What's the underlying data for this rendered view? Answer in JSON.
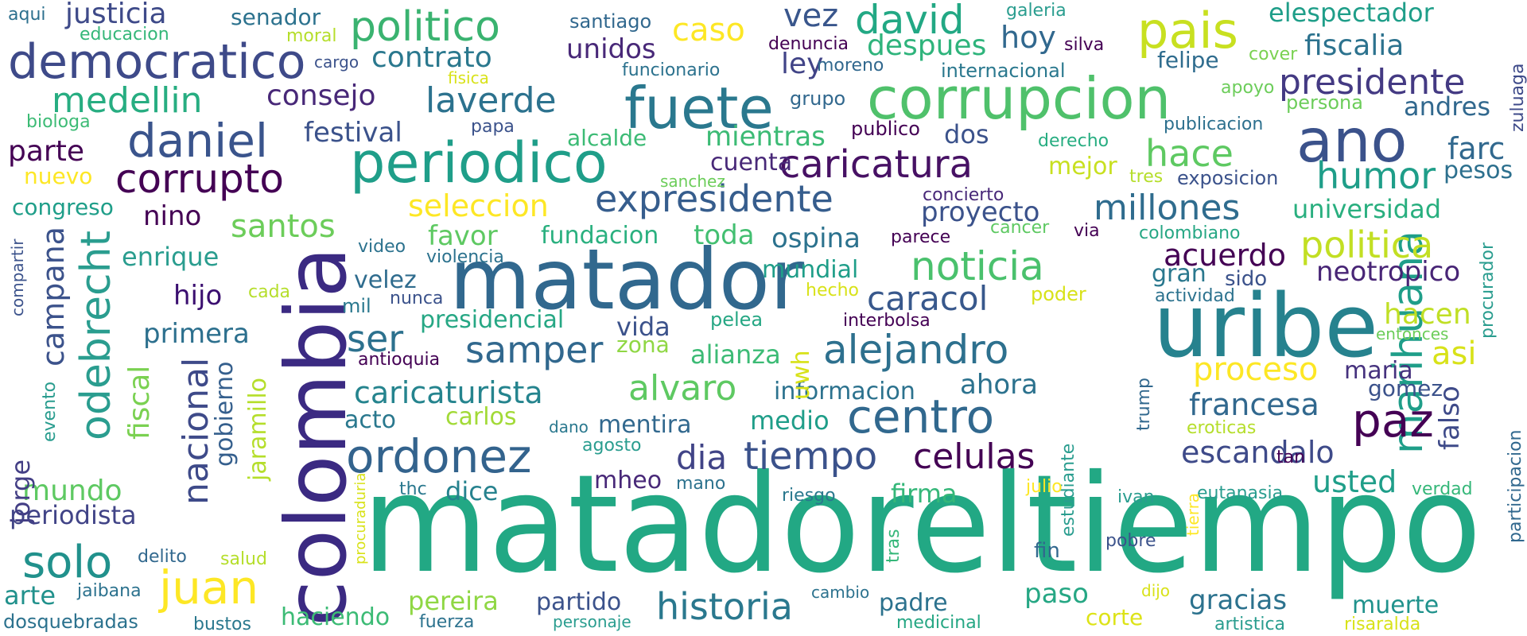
{
  "palette": [
    "#440154",
    "#482878",
    "#3e4989",
    "#31688e",
    "#26828e",
    "#1f9e89",
    "#35b779",
    "#6ece58",
    "#b5de2b",
    "#fde725"
  ],
  "words": [
    {
      "id": "matadoreltiempo",
      "text": "matadoreltiempo",
      "color": "#22a884"
    },
    {
      "id": "colombia",
      "text": "colombia",
      "color": "#3b2a82"
    },
    {
      "id": "matador",
      "text": "matador",
      "color": "#31688e"
    },
    {
      "id": "uribe",
      "text": "uribe",
      "color": "#26828e"
    },
    {
      "id": "corrupcion",
      "text": "corrupcion",
      "color": "#4fc16b"
    },
    {
      "id": "periodico",
      "text": "periodico",
      "color": "#1f9e89"
    },
    {
      "id": "fuete",
      "text": "fuete",
      "color": "#2a788e"
    },
    {
      "id": "democratico",
      "text": "democratico",
      "color": "#3e4a89"
    },
    {
      "id": "marihuana",
      "text": "marihuana",
      "color": "#1f9e89"
    },
    {
      "id": "pais",
      "text": "pais",
      "color": "#c8e020"
    },
    {
      "id": "ano",
      "text": "ano",
      "color": "#3b528b"
    },
    {
      "id": "paz",
      "text": "paz",
      "color": "#440154"
    },
    {
      "id": "centro",
      "text": "centro",
      "color": "#31688e"
    },
    {
      "id": "odebrecht",
      "text": "odebrecht",
      "color": "#2a9d8f"
    },
    {
      "id": "ordonez",
      "text": "ordonez",
      "color": "#33638d"
    },
    {
      "id": "daniel",
      "text": "daniel",
      "color": "#3a548c"
    },
    {
      "id": "juan",
      "text": "juan",
      "color": "#fde725"
    },
    {
      "id": "solo",
      "text": "solo",
      "color": "#21918c"
    },
    {
      "id": "corrupto",
      "text": "corrupto",
      "color": "#440154"
    },
    {
      "id": "politico",
      "text": "politico",
      "color": "#3ab370"
    },
    {
      "id": "caricatura",
      "text": "caricatura",
      "color": "#471164"
    },
    {
      "id": "expresidente",
      "text": "expresidente",
      "color": "#365d8d"
    },
    {
      "id": "alejandro",
      "text": "alejandro",
      "color": "#2d708e"
    },
    {
      "id": "noticia",
      "text": "noticia",
      "color": "#4ac16d"
    },
    {
      "id": "tiempo",
      "text": "tiempo",
      "color": "#3b528b"
    },
    {
      "id": "david",
      "text": "david",
      "color": "#22a884"
    },
    {
      "id": "historia",
      "text": "historia",
      "color": "#2a788e"
    },
    {
      "id": "politica",
      "text": "politica",
      "color": "#c2df23"
    },
    {
      "id": "nacional",
      "text": "nacional",
      "color": "#3e4a89"
    },
    {
      "id": "samper",
      "text": "samper",
      "color": "#31688e"
    },
    {
      "id": "humor",
      "text": "humor",
      "color": "#1f9e89"
    },
    {
      "id": "presidente",
      "text": "presidente",
      "color": "#443a83"
    },
    {
      "id": "laverde",
      "text": "laverde",
      "color": "#2c728e"
    },
    {
      "id": "medellin",
      "text": "medellin",
      "color": "#27ad81"
    },
    {
      "id": "millones",
      "text": "millones",
      "color": "#2f6c8e"
    },
    {
      "id": "hace",
      "text": "hace",
      "color": "#5ec962"
    },
    {
      "id": "alvaro",
      "text": "alvaro",
      "color": "#5ec962"
    },
    {
      "id": "celulas",
      "text": "celulas",
      "color": "#440154"
    },
    {
      "id": "caracol",
      "text": "caracol",
      "color": "#38588c"
    },
    {
      "id": "campana",
      "text": "campana",
      "color": "#3b528b"
    },
    {
      "id": "ser",
      "text": "ser",
      "color": "#2c718e"
    },
    {
      "id": "santos",
      "text": "santos",
      "color": "#6ccd5a"
    },
    {
      "id": "caricaturista",
      "text": "caricaturista",
      "color": "#25848e"
    },
    {
      "id": "proceso",
      "text": "proceso",
      "color": "#fde725"
    },
    {
      "id": "dia",
      "text": "dia",
      "color": "#414487"
    },
    {
      "id": "seleccion",
      "text": "seleccion",
      "color": "#fde725"
    },
    {
      "id": "escandalo",
      "text": "escandalo",
      "color": "#3e4a89"
    },
    {
      "id": "francesa",
      "text": "francesa",
      "color": "#31688e"
    },
    {
      "id": "fiscal",
      "text": "fiscal",
      "color": "#7ad151"
    },
    {
      "id": "gobierno",
      "text": "gobierno",
      "color": "#355f8d"
    },
    {
      "id": "jaramillo",
      "text": "jaramillo",
      "color": "#b5de2b"
    },
    {
      "id": "mundo",
      "text": "mundo",
      "color": "#5ec962"
    },
    {
      "id": "usted",
      "text": "usted",
      "color": "#1f9e89"
    },
    {
      "id": "asi",
      "text": "asi",
      "color": "#d8e219"
    },
    {
      "id": "hacen",
      "text": "hacen",
      "color": "#c0df25"
    },
    {
      "id": "acuerdo",
      "text": "acuerdo",
      "color": "#440154"
    },
    {
      "id": "neotropico",
      "text": "neotropico",
      "color": "#482576"
    },
    {
      "id": "farc",
      "text": "farc",
      "color": "#31688e"
    },
    {
      "id": "falso",
      "text": "falso",
      "color": "#3e4a89"
    },
    {
      "id": "consejo",
      "text": "consejo",
      "color": "#482878"
    },
    {
      "id": "contrato",
      "text": "contrato",
      "color": "#2a788e"
    },
    {
      "id": "justicia",
      "text": "justicia",
      "color": "#3e4a89"
    },
    {
      "id": "parte",
      "text": "parte",
      "color": "#440154"
    },
    {
      "id": "caso",
      "text": "caso",
      "color": "#fde725"
    },
    {
      "id": "vez",
      "text": "vez",
      "color": "#39568c"
    },
    {
      "id": "despues",
      "text": "despues",
      "color": "#2fb47c"
    },
    {
      "id": "hoy",
      "text": "hoy",
      "color": "#31688e"
    },
    {
      "id": "ley",
      "text": "ley",
      "color": "#414487"
    },
    {
      "id": "unidos",
      "text": "unidos",
      "color": "#482878"
    },
    {
      "id": "fiscalia",
      "text": "fiscalia",
      "color": "#2c728e"
    },
    {
      "id": "elespectador",
      "text": "elespectador",
      "color": "#1f9e89"
    },
    {
      "id": "andres",
      "text": "andres",
      "color": "#31688e"
    },
    {
      "id": "festival",
      "text": "festival",
      "color": "#3b528b"
    },
    {
      "id": "dos",
      "text": "dos",
      "color": "#3b528b"
    },
    {
      "id": "mientras",
      "text": "mientras",
      "color": "#3cbb75"
    },
    {
      "id": "cuenta",
      "text": "cuenta",
      "color": "#482878"
    },
    {
      "id": "proyecto",
      "text": "proyecto",
      "color": "#3b528b"
    },
    {
      "id": "universidad",
      "text": "universidad",
      "color": "#29af7f"
    },
    {
      "id": "pesos",
      "text": "pesos",
      "color": "#2d708e"
    },
    {
      "id": "nino",
      "text": "nino",
      "color": "#440154"
    },
    {
      "id": "enrique",
      "text": "enrique",
      "color": "#2a9d8f"
    },
    {
      "id": "favor",
      "text": "favor",
      "color": "#5ec962"
    },
    {
      "id": "fundacion",
      "text": "fundacion",
      "color": "#2ab07f"
    },
    {
      "id": "toda",
      "text": "toda",
      "color": "#43bf71"
    },
    {
      "id": "ospina",
      "text": "ospina",
      "color": "#2c728e"
    },
    {
      "id": "hijo",
      "text": "hijo",
      "color": "#3b0f70"
    },
    {
      "id": "primera",
      "text": "primera",
      "color": "#2d708e"
    },
    {
      "id": "velez",
      "text": "velez",
      "color": "#2f6c8e"
    },
    {
      "id": "vida",
      "text": "vida",
      "color": "#3b528b"
    },
    {
      "id": "presidencial",
      "text": "presidencial",
      "color": "#26a784"
    },
    {
      "id": "alianza",
      "text": "alianza",
      "color": "#3cbb75"
    },
    {
      "id": "mundial",
      "text": "mundial",
      "color": "#1f9e89"
    },
    {
      "id": "informacion",
      "text": "informacion",
      "color": "#2c728e"
    },
    {
      "id": "ahora",
      "text": "ahora",
      "color": "#2c728e"
    },
    {
      "id": "medio",
      "text": "medio",
      "color": "#1f9e89"
    },
    {
      "id": "mentira",
      "text": "mentira",
      "color": "#31688e"
    },
    {
      "id": "carlos",
      "text": "carlos",
      "color": "#a2da37"
    },
    {
      "id": "acto",
      "text": "acto",
      "color": "#2a788e"
    },
    {
      "id": "maria",
      "text": "maria",
      "color": "#46327e"
    },
    {
      "id": "gomez",
      "text": "gomez",
      "color": "#3b528b"
    },
    {
      "id": "mheo",
      "text": "mheo",
      "color": "#482878"
    },
    {
      "id": "dice",
      "text": "dice",
      "color": "#26828e"
    },
    {
      "id": "periodista",
      "text": "periodista",
      "color": "#414487"
    },
    {
      "id": "arte",
      "text": "arte",
      "color": "#21918c"
    },
    {
      "id": "jorge",
      "text": "jorge",
      "color": "#433e85"
    },
    {
      "id": "firma",
      "text": "firma",
      "color": "#35b779"
    },
    {
      "id": "pereira",
      "text": "pereira",
      "color": "#8fd744"
    },
    {
      "id": "partido",
      "text": "partido",
      "color": "#3b528b"
    },
    {
      "id": "padre",
      "text": "padre",
      "color": "#2c728e"
    },
    {
      "id": "paso",
      "text": "paso",
      "color": "#26a784"
    },
    {
      "id": "gracias",
      "text": "gracias",
      "color": "#2c728e"
    },
    {
      "id": "muerte",
      "text": "muerte",
      "color": "#20928c"
    },
    {
      "id": "haciendo",
      "text": "haciendo",
      "color": "#3cbb75"
    },
    {
      "id": "corte",
      "text": "corte",
      "color": "#dde318"
    },
    {
      "id": "zona",
      "text": "zona",
      "color": "#8fd744"
    },
    {
      "id": "uwh",
      "text": "uwh",
      "color": "#d8e219"
    },
    {
      "id": "gran",
      "text": "gran",
      "color": "#2a788e"
    },
    {
      "id": "sido",
      "text": "sido",
      "color": "#3b528b"
    },
    {
      "id": "mejor",
      "text": "mejor",
      "color": "#c8e020"
    },
    {
      "id": "estudiante",
      "text": "estudiante",
      "color": "#2a9d8f"
    },
    {
      "id": "procurador",
      "text": "procurador",
      "color": "#2a9d8f"
    },
    {
      "id": "participacion",
      "text": "participacion",
      "color": "#31688e"
    },
    {
      "id": "zuluaga",
      "text": "zuluaga",
      "color": "#3e4a89"
    },
    {
      "id": "congreso",
      "text": "congreso",
      "color": "#1f9e89"
    },
    {
      "id": "nuevo",
      "text": "nuevo",
      "color": "#fde725"
    },
    {
      "id": "senador",
      "text": "senador",
      "color": "#2c728e"
    },
    {
      "id": "santiago",
      "text": "santiago",
      "color": "#31688e"
    },
    {
      "id": "galeria",
      "text": "galeria",
      "color": "#2a9d8f"
    },
    {
      "id": "aqui",
      "text": "aqui",
      "color": "#2d708e"
    },
    {
      "id": "educacion",
      "text": "educacion",
      "color": "#35b779"
    },
    {
      "id": "moral",
      "text": "moral",
      "color": "#b5de2b"
    },
    {
      "id": "cargo",
      "text": "cargo",
      "color": "#3b528b"
    },
    {
      "id": "fisica",
      "text": "fisica",
      "color": "#d8e219"
    },
    {
      "id": "denuncia",
      "text": "denuncia",
      "color": "#440154"
    },
    {
      "id": "silva",
      "text": "silva",
      "color": "#440154"
    },
    {
      "id": "cover",
      "text": "cover",
      "color": "#7ad151"
    },
    {
      "id": "felipe",
      "text": "felipe",
      "color": "#2f6c8e"
    },
    {
      "id": "funcionario",
      "text": "funcionario",
      "color": "#2c728e"
    },
    {
      "id": "moreno",
      "text": "moreno",
      "color": "#31688e"
    },
    {
      "id": "internacional",
      "text": "internacional",
      "color": "#2a788e"
    },
    {
      "id": "apoyo",
      "text": "apoyo",
      "color": "#6ccd5a"
    },
    {
      "id": "persona",
      "text": "persona",
      "color": "#6ccd5a"
    },
    {
      "id": "biologa",
      "text": "biologa",
      "color": "#3cbb75"
    },
    {
      "id": "grupo",
      "text": "grupo",
      "color": "#31688e"
    },
    {
      "id": "papa",
      "text": "papa",
      "color": "#3b528b"
    },
    {
      "id": "publico",
      "text": "publico",
      "color": "#440154"
    },
    {
      "id": "derecho",
      "text": "derecho",
      "color": "#27ad81"
    },
    {
      "id": "publicacion",
      "text": "publicacion",
      "color": "#2d708e"
    },
    {
      "id": "alcalde",
      "text": "alcalde",
      "color": "#3cbb75"
    },
    {
      "id": "sanchez",
      "text": "sanchez",
      "color": "#6ccd5a"
    },
    {
      "id": "concierto",
      "text": "concierto",
      "color": "#482878"
    },
    {
      "id": "tres",
      "text": "tres",
      "color": "#b5de2b"
    },
    {
      "id": "exposicion",
      "text": "exposicion",
      "color": "#3b528b"
    },
    {
      "id": "cancer",
      "text": "cancer",
      "color": "#5ec962"
    },
    {
      "id": "via",
      "text": "via",
      "color": "#440154"
    },
    {
      "id": "colombiano",
      "text": "colombiano",
      "color": "#26a784"
    },
    {
      "id": "parece",
      "text": "parece",
      "color": "#440154"
    },
    {
      "id": "video",
      "text": "video",
      "color": "#2c728e"
    },
    {
      "id": "violencia",
      "text": "violencia",
      "color": "#2c728e"
    },
    {
      "id": "compartir",
      "text": "compartir",
      "color": "#3b528b"
    },
    {
      "id": "hecho",
      "text": "hecho",
      "color": "#d8e219"
    },
    {
      "id": "cada",
      "text": "cada",
      "color": "#b5de2b"
    },
    {
      "id": "mil",
      "text": "mil",
      "color": "#2a788e"
    },
    {
      "id": "nunca",
      "text": "nunca",
      "color": "#3b528b"
    },
    {
      "id": "poder",
      "text": "poder",
      "color": "#d8e219"
    },
    {
      "id": "actividad",
      "text": "actividad",
      "color": "#2c728e"
    },
    {
      "id": "entonces",
      "text": "entonces",
      "color": "#6ccd5a"
    },
    {
      "id": "interbolsa",
      "text": "interbolsa",
      "color": "#440154"
    },
    {
      "id": "pelea",
      "text": "pelea",
      "color": "#26a784"
    },
    {
      "id": "antioquia",
      "text": "antioquia",
      "color": "#440154"
    },
    {
      "id": "evento",
      "text": "evento",
      "color": "#2a9d8f"
    },
    {
      "id": "trump",
      "text": "trump",
      "color": "#31688e"
    },
    {
      "id": "eroticas",
      "text": "eroticas",
      "color": "#b5de2b"
    },
    {
      "id": "dano",
      "text": "dano",
      "color": "#2a788e"
    },
    {
      "id": "agosto",
      "text": "agosto",
      "color": "#2a9d8f"
    },
    {
      "id": "tan",
      "text": "tan",
      "color": "#440154"
    },
    {
      "id": "thc",
      "text": "thc",
      "color": "#2a788e"
    },
    {
      "id": "mano",
      "text": "mano",
      "color": "#2c728e"
    },
    {
      "id": "riesgo",
      "text": "riesgo",
      "color": "#2a788e"
    },
    {
      "id": "julio",
      "text": "julio",
      "color": "#fde725"
    },
    {
      "id": "ivan",
      "text": "ivan",
      "color": "#2a9d8f"
    },
    {
      "id": "eutanasia",
      "text": "eutanasia",
      "color": "#2a9d8f"
    },
    {
      "id": "verdad",
      "text": "verdad",
      "color": "#35b779"
    },
    {
      "id": "procuraduria",
      "text": "procuraduria",
      "color": "#d8e219"
    },
    {
      "id": "tras",
      "text": "tras",
      "color": "#35b779"
    },
    {
      "id": "fin",
      "text": "fin",
      "color": "#31688e"
    },
    {
      "id": "pobre",
      "text": "pobre",
      "color": "#3b528b"
    },
    {
      "id": "tierra",
      "text": "tierra",
      "color": "#fde725"
    },
    {
      "id": "delito",
      "text": "delito",
      "color": "#31688e"
    },
    {
      "id": "salud",
      "text": "salud",
      "color": "#b5de2b"
    },
    {
      "id": "jaibana",
      "text": "jaibana",
      "color": "#2c728e"
    },
    {
      "id": "cambio",
      "text": "cambio",
      "color": "#2c728e"
    },
    {
      "id": "dijo",
      "text": "dijo",
      "color": "#d8e219"
    },
    {
      "id": "dosquebradas",
      "text": "dosquebradas",
      "color": "#2c728e"
    },
    {
      "id": "bustos",
      "text": "bustos",
      "color": "#2a788e"
    },
    {
      "id": "fuerza",
      "text": "fuerza",
      "color": "#2c728e"
    },
    {
      "id": "personaje",
      "text": "personaje",
      "color": "#2a9d8f"
    },
    {
      "id": "medicinal",
      "text": "medicinal",
      "color": "#26a784"
    },
    {
      "id": "artistica",
      "text": "artistica",
      "color": "#2a9d8f"
    },
    {
      "id": "risaralda",
      "text": "risaralda",
      "color": "#d8e219"
    }
  ]
}
